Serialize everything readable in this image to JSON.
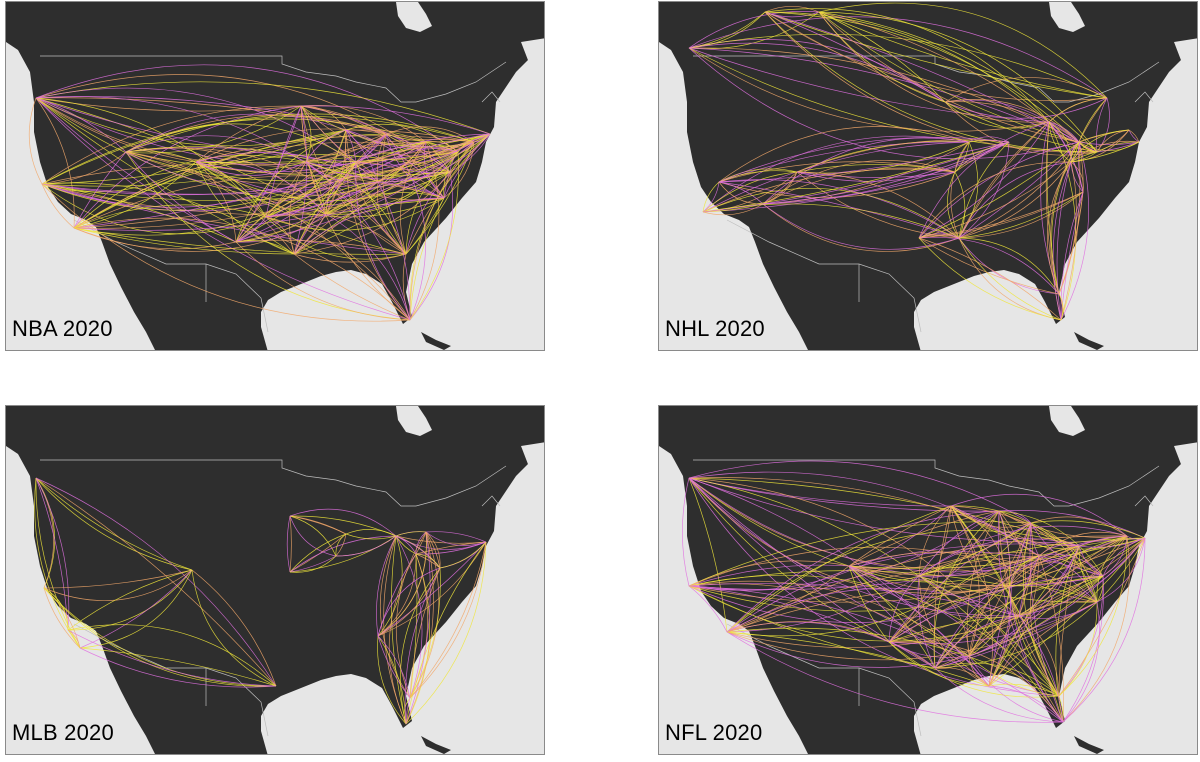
{
  "panels": [
    {
      "label": "NBA 2020",
      "pattern": "nba"
    },
    {
      "label": "NHL 2020",
      "pattern": "nhl"
    },
    {
      "label": "MLB 2020",
      "pattern": "mlb"
    },
    {
      "label": "NFL 2020",
      "pattern": "nfl"
    }
  ],
  "colors": {
    "land": "#2e2e2e",
    "water": "#e6e6e6",
    "border": "#bdbdbd",
    "route_a": "#f0e63a",
    "route_b": "#e070e0",
    "route_c": "#f2a86a"
  }
}
